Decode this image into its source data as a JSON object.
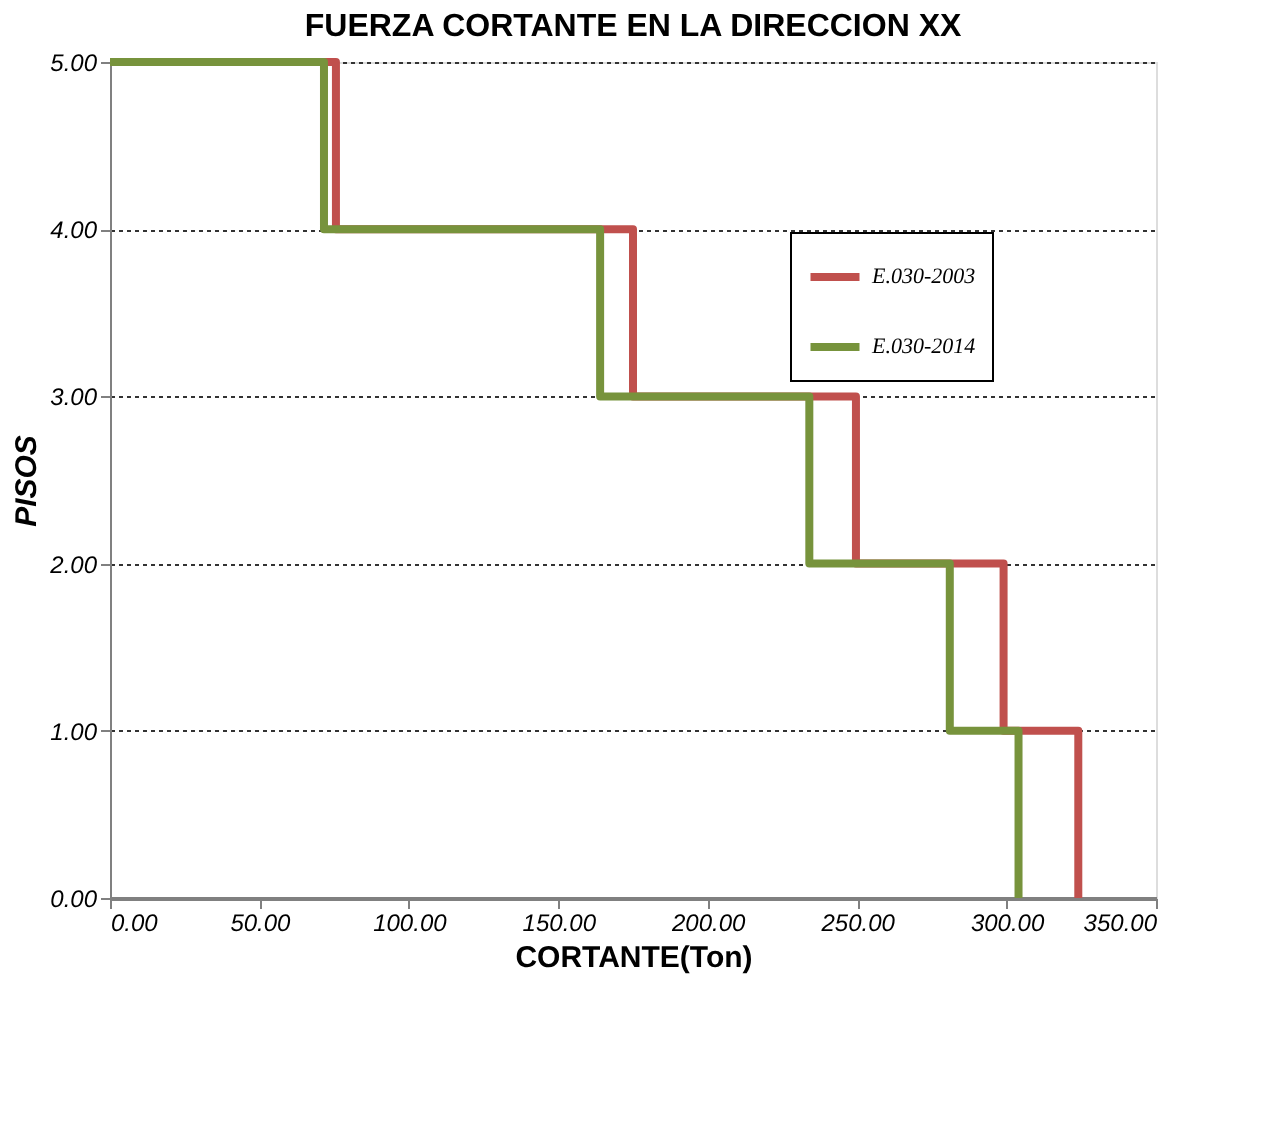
{
  "chart_data": {
    "type": "line",
    "title": "FUERZA CORTANTE EN LA DIRECCION XX",
    "xlabel": "CORTANTE(Ton)",
    "ylabel": "PISOS",
    "series": [
      {
        "name": "E.030-2003",
        "color": "#c0504d",
        "x": [
          0,
          75.6,
          75.6,
          175,
          175,
          249.6,
          249.6,
          299,
          299,
          324,
          324
        ],
        "values": [
          5,
          5,
          4,
          4,
          3,
          3,
          2,
          2,
          1,
          1,
          0
        ]
      },
      {
        "name": "E.030-2014",
        "color": "#77933c",
        "x": [
          0,
          71.6,
          71.6,
          164,
          164,
          234,
          234,
          281,
          281,
          304,
          304
        ],
        "values": [
          5,
          5,
          4,
          4,
          3,
          3,
          2,
          2,
          1,
          1,
          0
        ]
      }
    ],
    "xlim": [
      0,
      350
    ],
    "xticks": [
      {
        "value": 0,
        "label": "0.00"
      },
      {
        "value": 50,
        "label": "50.00"
      },
      {
        "value": 100,
        "label": "100.00"
      },
      {
        "value": 150,
        "label": "150.00"
      },
      {
        "value": 200,
        "label": "200.00"
      },
      {
        "value": 250,
        "label": "250.00"
      },
      {
        "value": 300,
        "label": "300.00"
      },
      {
        "value": 350,
        "label": "350.00"
      }
    ],
    "ylim": [
      0,
      5
    ],
    "yticks": [
      {
        "value": 0,
        "label": "0.00"
      },
      {
        "value": 1,
        "label": "1.00"
      },
      {
        "value": 2,
        "label": "2.00"
      },
      {
        "value": 3,
        "label": "3.00"
      },
      {
        "value": 4,
        "label": "4.00"
      },
      {
        "value": 5,
        "label": "5.00"
      }
    ],
    "grid": "y",
    "legend": "top right",
    "marker": "none",
    "line_style": "solid"
  }
}
